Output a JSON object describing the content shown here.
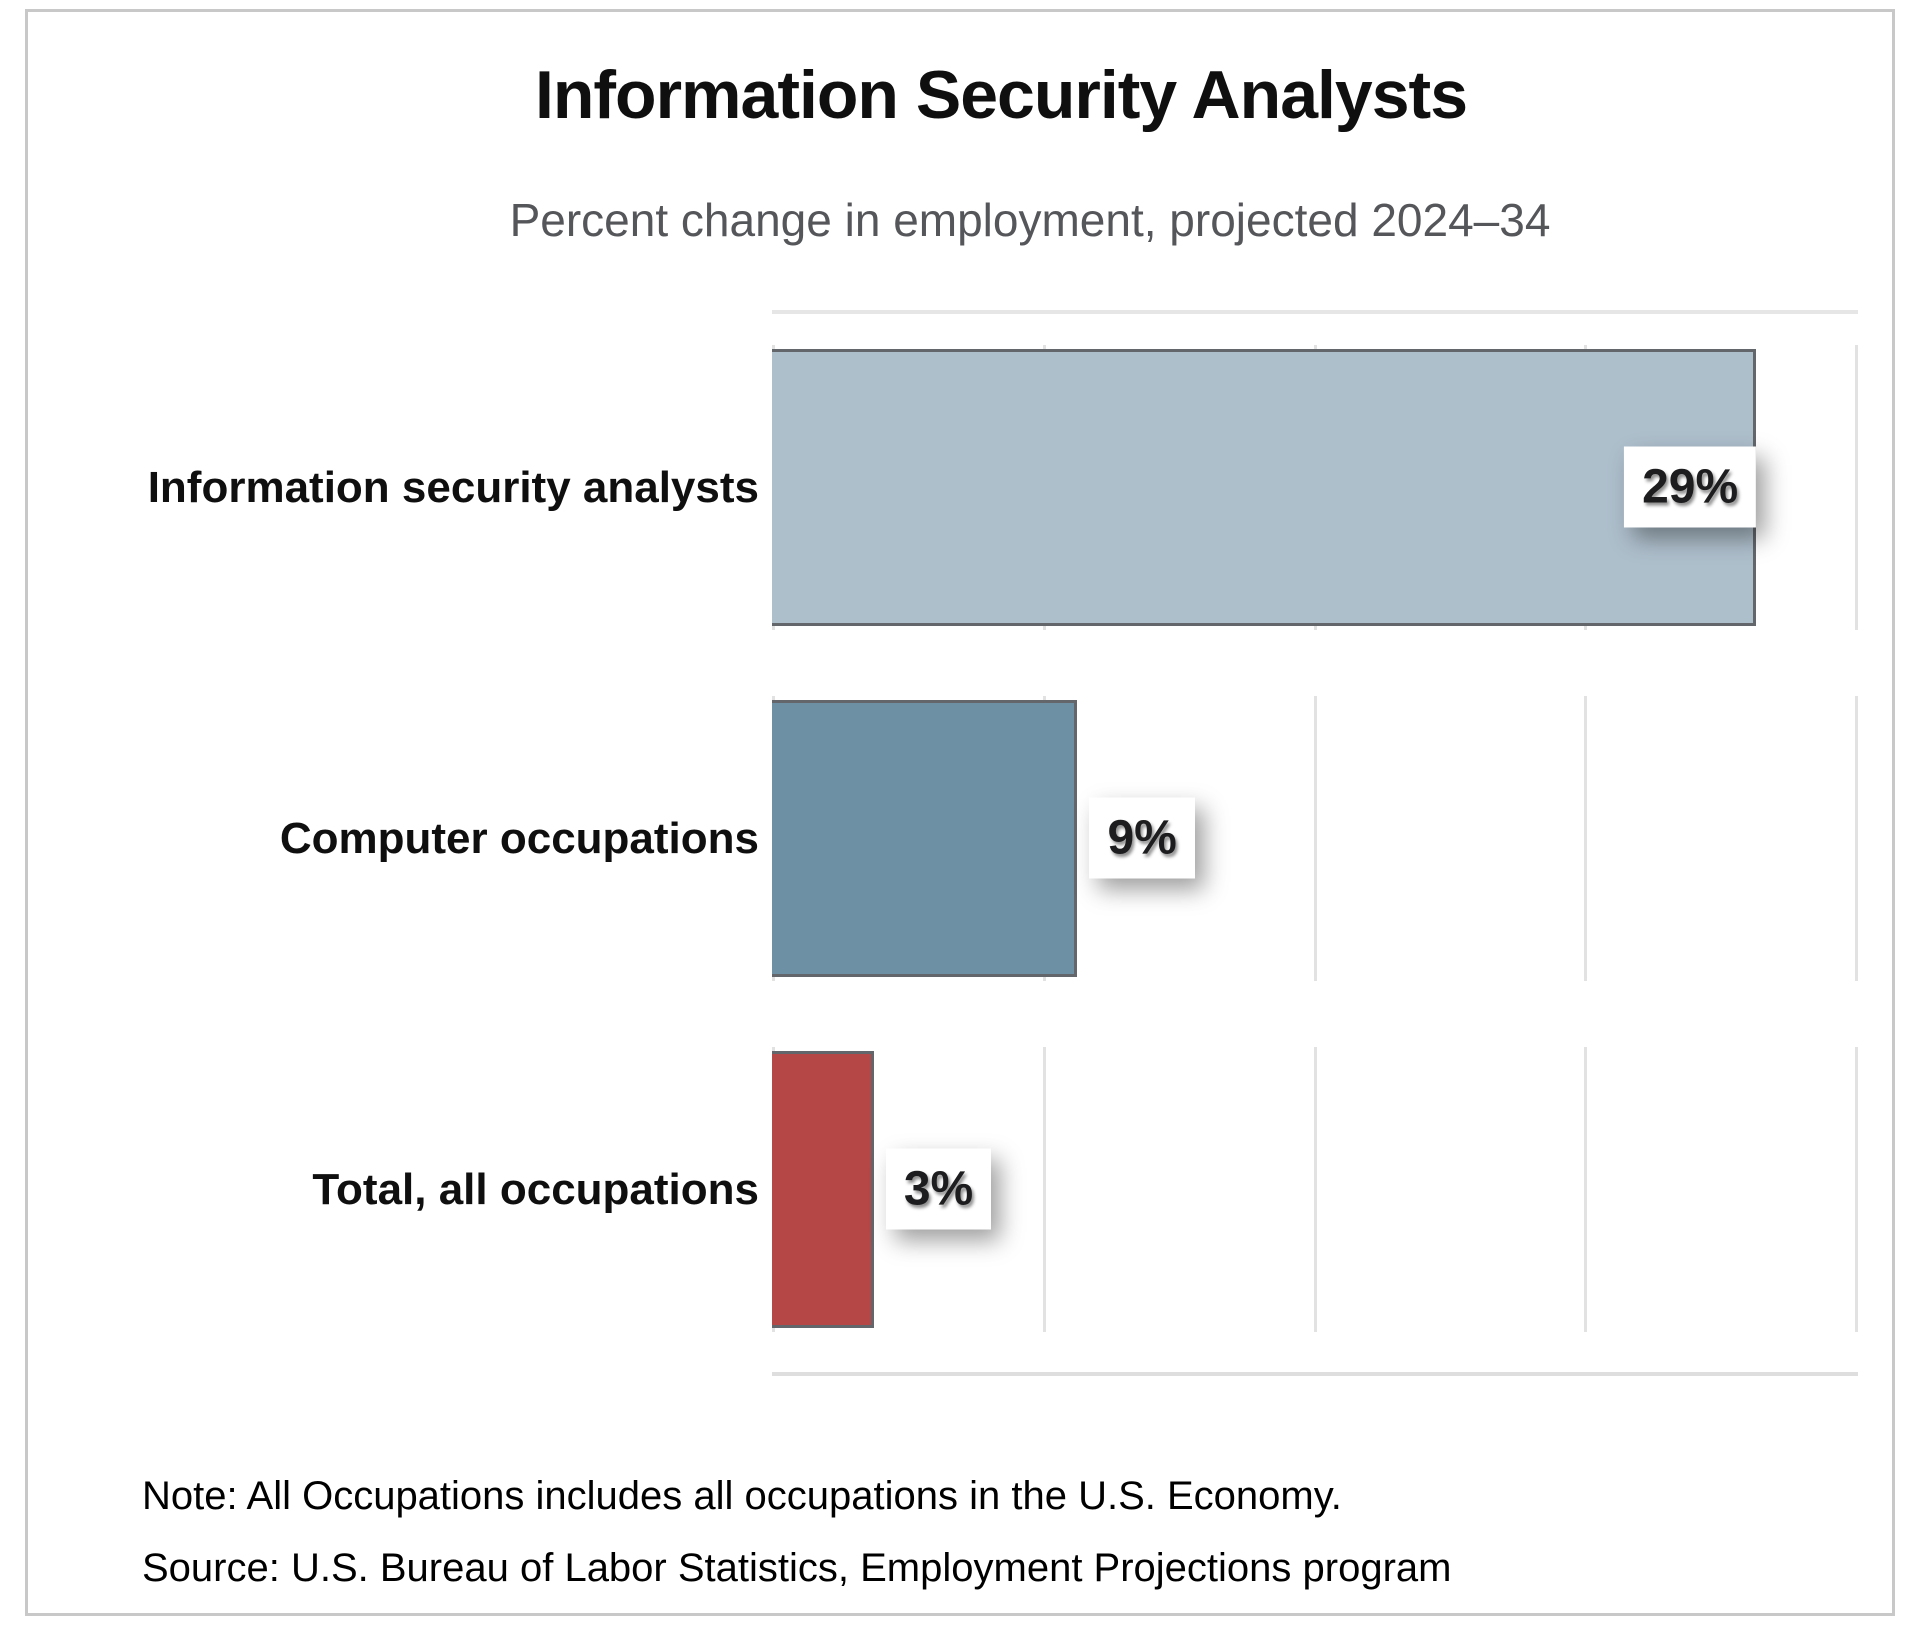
{
  "chart_data": {
    "type": "bar",
    "orientation": "horizontal",
    "title": "Information Security Analysts",
    "subtitle": "Percent change in employment, projected 2024–34",
    "categories": [
      "Information security analysts",
      "Computer occupations",
      "Total, all occupations"
    ],
    "values": [
      29,
      9,
      3
    ],
    "value_labels": [
      "29%",
      "9%",
      "3%"
    ],
    "bar_colors": [
      "#aebfcc",
      "#6e90a5",
      "#b54747"
    ],
    "bar_border_color": "#63666a",
    "grid_color": "#e2e2e2",
    "xlim": [
      0,
      32
    ],
    "gridline_step": 8,
    "grid": true,
    "legend": "none",
    "value_label_inside": [
      true,
      false,
      false
    ],
    "note": "Note: All Occupations includes all occupations in the U.S. Economy.",
    "source": "Source: U.S. Bureau of Labor Statistics, Employment Projections program"
  }
}
